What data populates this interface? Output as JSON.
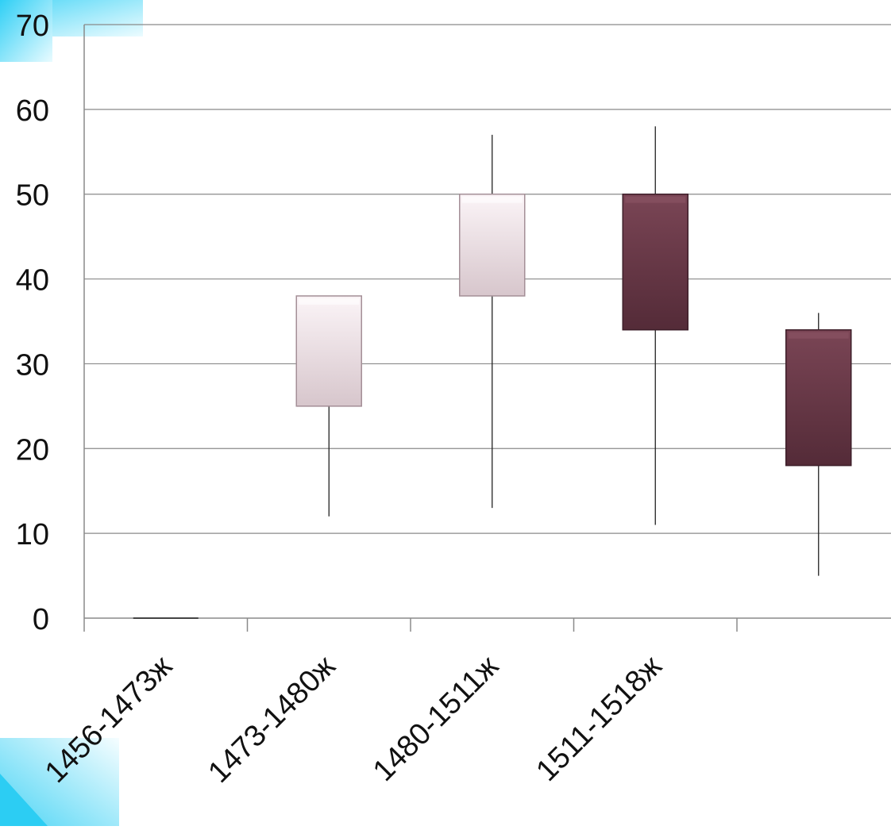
{
  "chart_data": {
    "type": "candlestick",
    "categories": [
      "1456-1473ж",
      "1473-1480ж",
      "1480-1511ж",
      "1511-1518ж",
      ""
    ],
    "ylim": [
      0,
      70
    ],
    "yticks": [
      0,
      10,
      20,
      30,
      40,
      50,
      60,
      70
    ],
    "grid": true,
    "series": [
      {
        "open": 0,
        "close": 0,
        "high": 0,
        "low": 0
      },
      {
        "open": 25,
        "close": 38,
        "high": 38,
        "low": 12
      },
      {
        "open": 38,
        "close": 50,
        "high": 57,
        "low": 13
      },
      {
        "open": 50,
        "close": 34,
        "high": 58,
        "low": 11
      },
      {
        "open": 34,
        "close": 18,
        "high": 36,
        "low": 5
      }
    ],
    "colors": {
      "up_fill": "#ede0e5",
      "down_fill": "#6b3a4a",
      "accent": "#2fcff5"
    }
  }
}
